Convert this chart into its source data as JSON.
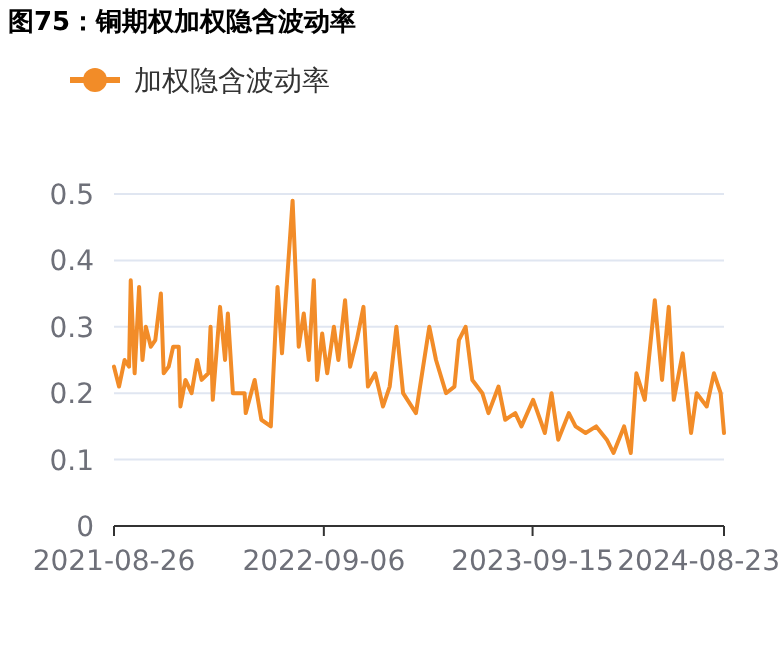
{
  "chart_data": {
    "type": "line",
    "title": "图75：铜期权加权隐含波动率",
    "x": [
      "2021-08-26",
      "2021-09-04",
      "2021-09-14",
      "2021-09-22",
      "2021-09-25",
      "2021-10-02",
      "2021-10-10",
      "2021-10-16",
      "2021-10-22",
      "2021-10-31",
      "2021-11-08",
      "2021-11-18",
      "2021-11-23",
      "2021-12-02",
      "2021-12-10",
      "2021-12-20",
      "2021-12-23",
      "2022-01-01",
      "2022-01-12",
      "2022-01-22",
      "2022-01-30",
      "2022-02-11",
      "2022-02-15",
      "2022-02-19",
      "2022-03-04",
      "2022-03-13",
      "2022-03-18",
      "2022-03-27",
      "2022-04-17",
      "2022-04-19",
      "2022-05-05",
      "2022-05-17",
      "2022-06-03",
      "2022-06-07",
      "2022-06-15",
      "2022-06-23",
      "2022-07-12",
      "2022-07-23",
      "2022-08-01",
      "2022-08-10",
      "2022-08-19",
      "2022-08-25",
      "2022-09-03",
      "2022-09-12",
      "2022-09-24",
      "2022-10-02",
      "2022-10-14",
      "2022-10-23",
      "2022-11-04",
      "2022-11-16",
      "2022-11-24",
      "2022-12-07",
      "2022-12-21",
      "2023-01-02",
      "2023-01-14",
      "2023-01-26",
      "2023-02-18",
      "2023-03-14",
      "2023-03-26",
      "2023-04-13",
      "2023-04-28",
      "2023-05-06",
      "2023-05-18",
      "2023-05-30",
      "2023-06-17",
      "2023-06-28",
      "2023-07-16",
      "2023-07-28",
      "2023-08-15",
      "2023-08-26",
      "2023-09-16",
      "2023-10-07",
      "2023-10-19",
      "2023-10-31",
      "2023-11-19",
      "2023-12-01",
      "2023-12-19",
      "2024-01-07",
      "2024-01-26",
      "2024-02-07",
      "2024-02-26",
      "2024-03-09",
      "2024-03-19",
      "2024-04-03",
      "2024-04-21",
      "2024-05-04",
      "2024-05-16",
      "2024-05-25",
      "2024-06-10",
      "2024-06-25",
      "2024-07-05",
      "2024-07-23",
      "2024-08-05",
      "2024-08-17",
      "2024-08-23"
    ],
    "series": [
      {
        "name": "加权隐含波动率",
        "color": "#f28c28",
        "values": [
          0.24,
          0.21,
          0.25,
          0.24,
          0.37,
          0.23,
          0.36,
          0.25,
          0.3,
          0.27,
          0.28,
          0.35,
          0.23,
          0.24,
          0.27,
          0.27,
          0.18,
          0.22,
          0.2,
          0.25,
          0.22,
          0.23,
          0.3,
          0.19,
          0.33,
          0.25,
          0.32,
          0.2,
          0.2,
          0.17,
          0.22,
          0.16,
          0.15,
          0.22,
          0.36,
          0.26,
          0.49,
          0.27,
          0.32,
          0.25,
          0.37,
          0.22,
          0.29,
          0.23,
          0.3,
          0.25,
          0.34,
          0.24,
          0.28,
          0.33,
          0.21,
          0.23,
          0.18,
          0.21,
          0.3,
          0.2,
          0.17,
          0.3,
          0.25,
          0.2,
          0.21,
          0.28,
          0.3,
          0.22,
          0.2,
          0.17,
          0.21,
          0.16,
          0.17,
          0.15,
          0.19,
          0.14,
          0.2,
          0.13,
          0.17,
          0.15,
          0.14,
          0.15,
          0.13,
          0.11,
          0.15,
          0.11,
          0.23,
          0.19,
          0.34,
          0.22,
          0.33,
          0.19,
          0.26,
          0.14,
          0.2,
          0.18,
          0.23,
          0.2,
          0.14
        ]
      }
    ],
    "xlim": [
      "2021-08-26",
      "2024-08-23"
    ],
    "xticks": [
      {
        "value": "2021-08-26",
        "label": "2021-08-26"
      },
      {
        "value": "2022-09-06",
        "label": "2022-09-06"
      },
      {
        "value": "2023-09-15",
        "label": "2023-09-15"
      },
      {
        "value": "2024-08-23",
        "label": "2024-08-23"
      }
    ],
    "ylim": [
      0,
      0.5
    ],
    "yticks": [
      0,
      0.1,
      0.2,
      0.3,
      0.4,
      0.5
    ],
    "grid": "y",
    "legend": "top left",
    "marker": "none",
    "line_style": "solid"
  }
}
